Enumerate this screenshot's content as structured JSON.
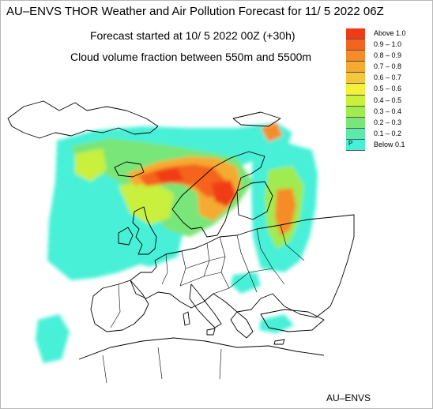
{
  "header": {
    "title": "AU–ENVS THOR Weather and Air Pollution Forecast for 11/ 5 2022  06Z",
    "forecast_start": "Forecast started at 10/ 5 2022  00Z (+30h)",
    "variable": "Cloud volume fraction between 550m and 5500m"
  },
  "legend": {
    "items": [
      {
        "label": "Above   1.0",
        "color": "#f03c14"
      },
      {
        "label": "0.9  –  1.0",
        "color": "#f5641e"
      },
      {
        "label": "0.8  –  0.9",
        "color": "#f58c28"
      },
      {
        "label": "0.7  –  0.8",
        "color": "#f5aa32"
      },
      {
        "label": "0.6  –  0.7",
        "color": "#f5c83c"
      },
      {
        "label": "0.5  –  0.6",
        "color": "#f5f03c"
      },
      {
        "label": "0.4  –  0.5",
        "color": "#c8f03c"
      },
      {
        "label": "0.3  –  0.4",
        "color": "#a0eb50"
      },
      {
        "label": "0.2  –  0.3",
        "color": "#78e678"
      },
      {
        "label": "0.1  –  0.2",
        "color": "#5aebaa"
      },
      {
        "label": "Below   0.1",
        "color": "#46f0d7"
      }
    ],
    "below_marker": "P"
  },
  "footer": {
    "credit": "AU–ENVS"
  },
  "colors": {
    "background": "#ffffff",
    "coastline": "#000000",
    "border": "#000000"
  }
}
